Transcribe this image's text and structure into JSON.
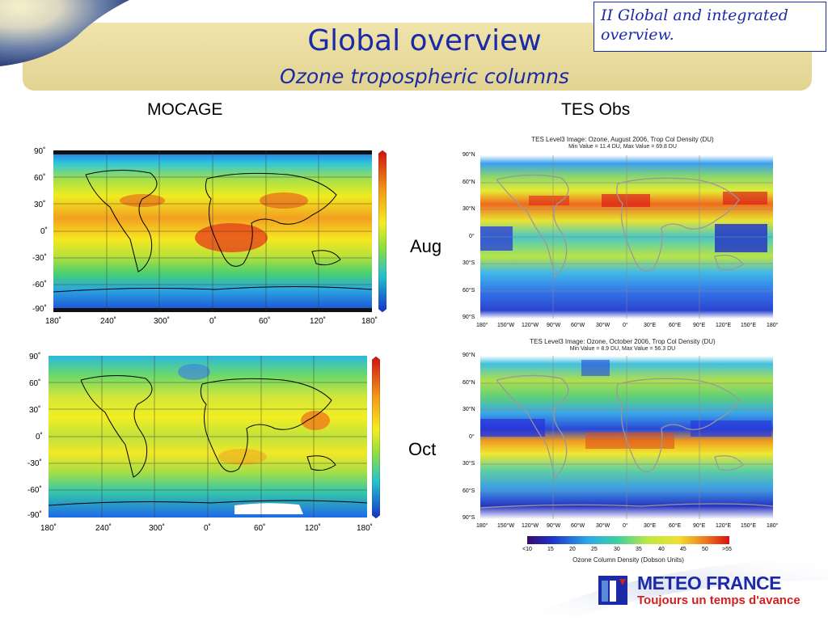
{
  "header": {
    "title": "Global overview",
    "subtitle": "Ozone tropospheric columns",
    "section_box": "II Global and integrated overview."
  },
  "columns": {
    "left": "MOCAGE",
    "right": "TES Obs"
  },
  "months": {
    "aug": "Aug",
    "oct": "Oct"
  },
  "mocage_axes": {
    "lat_ticks": [
      "90˚",
      "60˚",
      "30˚",
      "0˚",
      "-30˚",
      "-60˚",
      "-90˚"
    ],
    "lon_ticks": [
      "180˚",
      "240˚",
      "300˚",
      "0˚",
      "60˚",
      "120˚",
      "180˚"
    ]
  },
  "tes_axes": {
    "lat_ticks": [
      "90°N",
      "60°N",
      "30°N",
      "0°",
      "30°S",
      "60°S",
      "90°S"
    ],
    "lon_ticks": [
      "180°",
      "150°W",
      "120°W",
      "90°W",
      "60°W",
      "30°W",
      "0°",
      "30°E",
      "60°E",
      "90°E",
      "120°E",
      "150°E",
      "180°"
    ]
  },
  "tes_aug": {
    "title": "TES Level3 Image: Ozone, August 2006, Trop Col Density (DU)",
    "range": "Min Value =    11.4 DU,    Max Value =    69.8 DU"
  },
  "tes_oct": {
    "title": "TES Level3 Image: Ozone, October 2006, Trop Col Density (DU)",
    "range": "Min Value =    8.9 DU,    Max Value =    56.3 DU"
  },
  "colorbar": {
    "ticks": [
      "<10",
      "15",
      "20",
      "25",
      "30",
      "35",
      "40",
      "45",
      "50",
      ">55"
    ],
    "label": "Ozone Column Density (Dobson Units)"
  },
  "logo": {
    "name": "METEO FRANCE",
    "tagline": "Toujours un temps d'avance"
  },
  "colors": {
    "accent": "#1c2aa8",
    "banner": "#e8dc9c",
    "logo_red": "#d12020"
  }
}
